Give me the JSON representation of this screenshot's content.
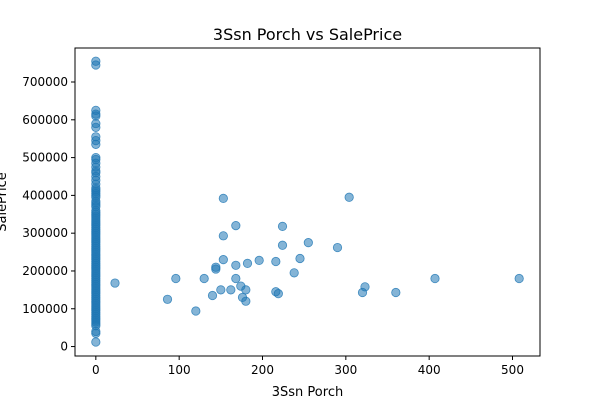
{
  "chart_data": {
    "type": "scatter",
    "title": "3Ssn Porch vs SalePrice",
    "xlabel": "3Ssn Porch",
    "ylabel": "SalePrice",
    "xlim": [
      -25,
      533
    ],
    "ylim": [
      -25000,
      790000
    ],
    "x_ticks": [
      0,
      100,
      200,
      300,
      400,
      500
    ],
    "y_ticks": [
      0,
      100000,
      200000,
      300000,
      400000,
      500000,
      600000,
      700000
    ],
    "marker_color": "#1f77b4",
    "marker_alpha": 0.55,
    "grid": false,
    "points": [
      [
        0,
        12000
      ],
      [
        0,
        35000
      ],
      [
        0,
        40000
      ],
      [
        0,
        55000
      ],
      [
        0,
        60000
      ],
      [
        0,
        65000
      ],
      [
        0,
        70000
      ],
      [
        0,
        75000
      ],
      [
        0,
        80000
      ],
      [
        0,
        85000
      ],
      [
        0,
        90000
      ],
      [
        0,
        95000
      ],
      [
        0,
        100000
      ],
      [
        0,
        105000
      ],
      [
        0,
        110000
      ],
      [
        0,
        115000
      ],
      [
        0,
        120000
      ],
      [
        0,
        125000
      ],
      [
        0,
        130000
      ],
      [
        0,
        135000
      ],
      [
        0,
        140000
      ],
      [
        0,
        145000
      ],
      [
        0,
        150000
      ],
      [
        0,
        155000
      ],
      [
        0,
        160000
      ],
      [
        0,
        165000
      ],
      [
        0,
        170000
      ],
      [
        0,
        175000
      ],
      [
        0,
        180000
      ],
      [
        0,
        185000
      ],
      [
        0,
        190000
      ],
      [
        0,
        195000
      ],
      [
        0,
        200000
      ],
      [
        0,
        205000
      ],
      [
        0,
        210000
      ],
      [
        0,
        215000
      ],
      [
        0,
        220000
      ],
      [
        0,
        225000
      ],
      [
        0,
        230000
      ],
      [
        0,
        235000
      ],
      [
        0,
        240000
      ],
      [
        0,
        245000
      ],
      [
        0,
        250000
      ],
      [
        0,
        255000
      ],
      [
        0,
        260000
      ],
      [
        0,
        265000
      ],
      [
        0,
        270000
      ],
      [
        0,
        275000
      ],
      [
        0,
        280000
      ],
      [
        0,
        285000
      ],
      [
        0,
        290000
      ],
      [
        0,
        295000
      ],
      [
        0,
        300000
      ],
      [
        0,
        305000
      ],
      [
        0,
        310000
      ],
      [
        0,
        315000
      ],
      [
        0,
        320000
      ],
      [
        0,
        325000
      ],
      [
        0,
        330000
      ],
      [
        0,
        335000
      ],
      [
        0,
        340000
      ],
      [
        0,
        345000
      ],
      [
        0,
        350000
      ],
      [
        0,
        355000
      ],
      [
        0,
        360000
      ],
      [
        0,
        370000
      ],
      [
        0,
        375000
      ],
      [
        0,
        380000
      ],
      [
        0,
        385000
      ],
      [
        0,
        395000
      ],
      [
        0,
        400000
      ],
      [
        0,
        405000
      ],
      [
        0,
        410000
      ],
      [
        0,
        415000
      ],
      [
        0,
        420000
      ],
      [
        0,
        430000
      ],
      [
        0,
        440000
      ],
      [
        0,
        450000
      ],
      [
        0,
        460000
      ],
      [
        0,
        465000
      ],
      [
        0,
        475000
      ],
      [
        0,
        485000
      ],
      [
        0,
        495000
      ],
      [
        0,
        500000
      ],
      [
        0,
        535000
      ],
      [
        0,
        545000
      ],
      [
        0,
        555000
      ],
      [
        0,
        580000
      ],
      [
        0,
        590000
      ],
      [
        0,
        610000
      ],
      [
        0,
        615000
      ],
      [
        0,
        625000
      ],
      [
        0,
        745000
      ],
      [
        0,
        755000
      ],
      [
        23,
        168000
      ],
      [
        86,
        125000
      ],
      [
        96,
        180000
      ],
      [
        120,
        94000
      ],
      [
        130,
        180000
      ],
      [
        140,
        135000
      ],
      [
        144,
        205000
      ],
      [
        144,
        210000
      ],
      [
        150,
        150000
      ],
      [
        153,
        230000
      ],
      [
        153,
        392000
      ],
      [
        153,
        293000
      ],
      [
        162,
        150000
      ],
      [
        168,
        215000
      ],
      [
        168,
        320000
      ],
      [
        168,
        180000
      ],
      [
        174,
        160000
      ],
      [
        176,
        130000
      ],
      [
        180,
        120000
      ],
      [
        180,
        150000
      ],
      [
        182,
        220000
      ],
      [
        196,
        228000
      ],
      [
        216,
        225000
      ],
      [
        216,
        145000
      ],
      [
        219,
        140000
      ],
      [
        224,
        318000
      ],
      [
        224,
        268000
      ],
      [
        238,
        195000
      ],
      [
        245,
        233000
      ],
      [
        255,
        275000
      ],
      [
        290,
        262000
      ],
      [
        304,
        395000
      ],
      [
        320,
        143000
      ],
      [
        323,
        158000
      ],
      [
        360,
        143000
      ],
      [
        407,
        180000
      ],
      [
        508,
        180000
      ]
    ]
  }
}
